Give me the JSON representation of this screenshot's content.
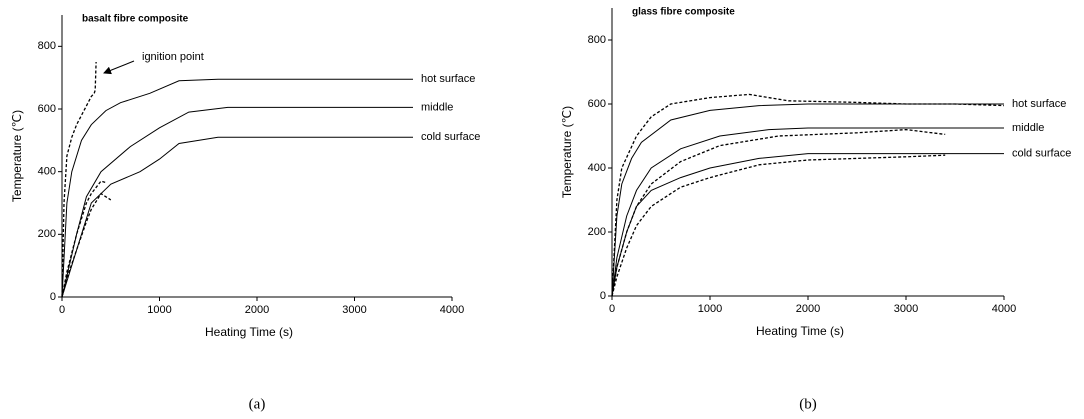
{
  "chart_data": [
    {
      "type": "line",
      "title": "basalt fibre composite",
      "x_label": "Heating Time (s)",
      "y_label": "Temperature (℃)",
      "caption": "(a)",
      "annotations": [
        "ignition point"
      ],
      "xlim": [
        0,
        4000
      ],
      "xticks": [
        0,
        1000,
        2000,
        3000,
        4000
      ],
      "ylim": [
        0,
        900
      ],
      "yticks": [
        0,
        200,
        400,
        600,
        800
      ],
      "series": [
        {
          "name": "hot surface",
          "color": "#000000",
          "dashed": false,
          "x": [
            0,
            50,
            100,
            200,
            300,
            450,
            600,
            900,
            1200,
            1600,
            2500,
            3600
          ],
          "values": [
            0,
            300,
            400,
            500,
            550,
            595,
            620,
            650,
            690,
            695,
            695,
            695
          ]
        },
        {
          "name": "middle",
          "color": "#000000",
          "dashed": false,
          "x": [
            0,
            150,
            250,
            400,
            700,
            1000,
            1300,
            1700,
            2500,
            3600
          ],
          "values": [
            0,
            200,
            320,
            400,
            480,
            540,
            590,
            605,
            605,
            605
          ]
        },
        {
          "name": "cold surface",
          "color": "#000000",
          "dashed": false,
          "x": [
            0,
            150,
            300,
            500,
            800,
            1000,
            1200,
            1600,
            2500,
            3600
          ],
          "values": [
            0,
            150,
            300,
            360,
            400,
            440,
            490,
            510,
            510,
            510
          ]
        },
        {
          "color": "#000000",
          "dashed": true,
          "x": [
            0,
            20,
            50,
            100,
            150,
            250,
            300,
            330,
            340,
            345,
            350
          ],
          "values": [
            0,
            300,
            450,
            510,
            550,
            610,
            640,
            650,
            660,
            700,
            750
          ]
        },
        {
          "color": "#000000",
          "dashed": true,
          "x": [
            0,
            50,
            150,
            250,
            300,
            400,
            450
          ],
          "values": [
            0,
            80,
            200,
            300,
            330,
            370,
            365
          ]
        },
        {
          "color": "#000000",
          "dashed": true,
          "x": [
            0,
            50,
            150,
            250,
            300,
            400,
            500
          ],
          "values": [
            0,
            60,
            150,
            240,
            280,
            330,
            310
          ]
        }
      ]
    },
    {
      "type": "line",
      "title": "glass fibre composite",
      "x_label": "Heating Time (s)",
      "y_label": "Temperature (℃)",
      "caption": "(b)",
      "xlim": [
        0,
        4000
      ],
      "xticks": [
        0,
        1000,
        2000,
        3000,
        4000
      ],
      "ylim": [
        0,
        900
      ],
      "yticks": [
        0,
        200,
        400,
        600,
        800
      ],
      "series": [
        {
          "name": "hot surface",
          "color": "#000000",
          "dashed": false,
          "x": [
            0,
            50,
            100,
            200,
            300,
            600,
            1000,
            1500,
            2000,
            3000,
            4000
          ],
          "values": [
            0,
            250,
            350,
            430,
            480,
            550,
            580,
            595,
            600,
            600,
            600
          ]
        },
        {
          "name": "middle",
          "color": "#000000",
          "dashed": false,
          "x": [
            0,
            50,
            150,
            250,
            400,
            700,
            1100,
            1600,
            2000,
            3000,
            4000
          ],
          "values": [
            0,
            120,
            250,
            330,
            400,
            460,
            500,
            520,
            525,
            525,
            525
          ]
        },
        {
          "name": "cold surface",
          "color": "#000000",
          "dashed": false,
          "x": [
            0,
            50,
            150,
            250,
            400,
            700,
            1000,
            1500,
            2000,
            3000,
            4000
          ],
          "values": [
            0,
            90,
            200,
            280,
            330,
            370,
            400,
            430,
            445,
            445,
            445
          ]
        },
        {
          "color": "#000000",
          "dashed": true,
          "x": [
            0,
            50,
            100,
            250,
            400,
            600,
            1000,
            1400,
            1800,
            2500,
            3000,
            3500,
            4000
          ],
          "values": [
            0,
            300,
            400,
            500,
            560,
            600,
            620,
            630,
            610,
            605,
            600,
            600,
            595
          ]
        },
        {
          "color": "#000000",
          "dashed": true,
          "x": [
            0,
            50,
            150,
            250,
            400,
            700,
            1100,
            1700,
            2500,
            3000,
            3400
          ],
          "values": [
            0,
            90,
            200,
            280,
            350,
            420,
            470,
            500,
            510,
            520,
            505
          ]
        },
        {
          "color": "#000000",
          "dashed": true,
          "x": [
            0,
            50,
            150,
            250,
            400,
            700,
            1000,
            1500,
            2000,
            3000,
            3400
          ],
          "values": [
            0,
            60,
            150,
            220,
            280,
            340,
            370,
            410,
            425,
            435,
            440
          ]
        }
      ]
    }
  ]
}
